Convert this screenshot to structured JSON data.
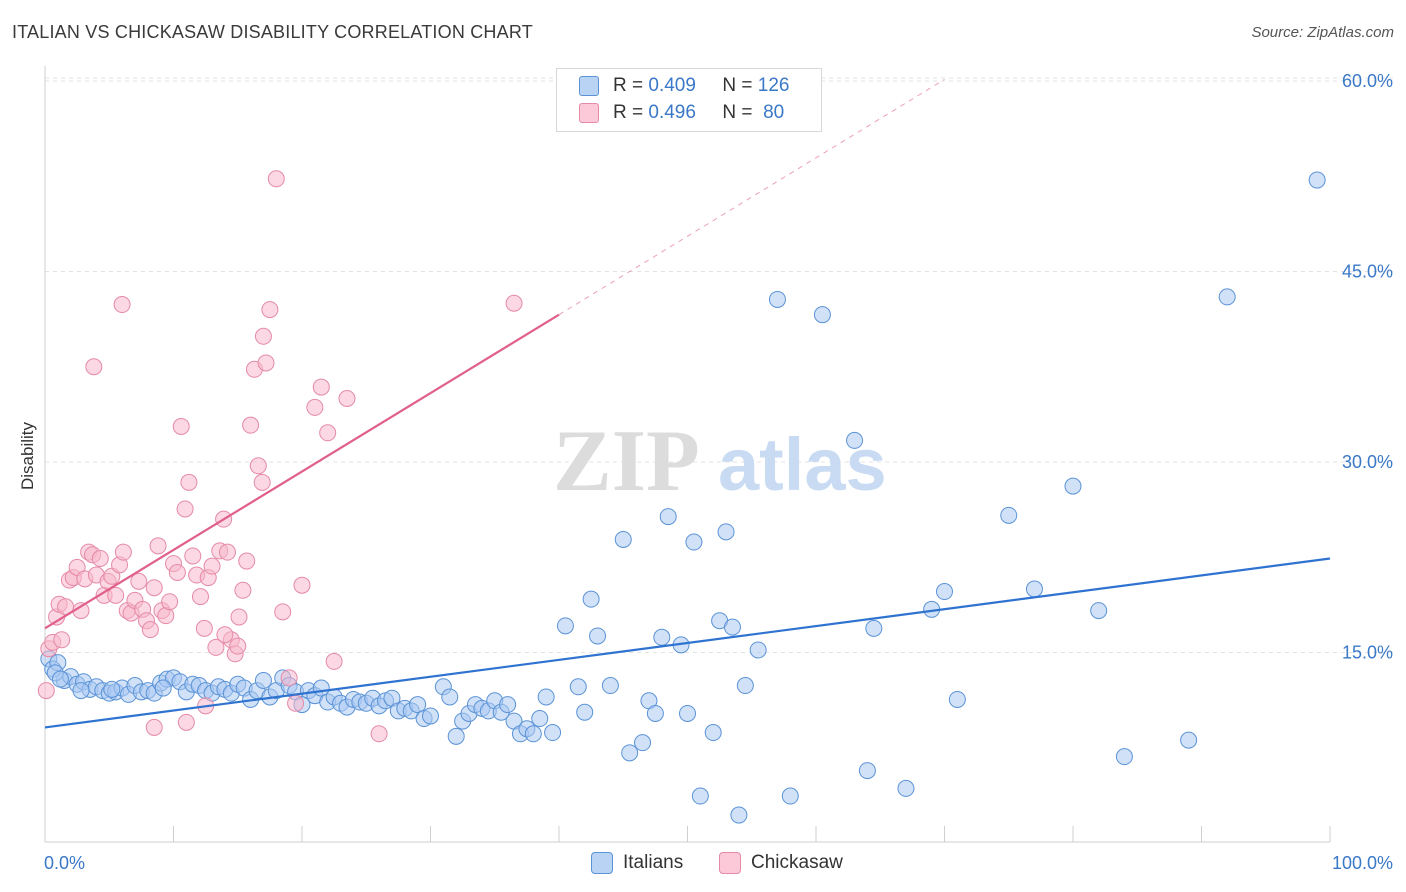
{
  "header": {
    "title": "ITALIAN VS CHICKASAW DISABILITY CORRELATION CHART",
    "source": "Source: ZipAtlas.com"
  },
  "watermark": {
    "zip": "ZIP",
    "atlas": "atlas"
  },
  "colors": {
    "italians_fill": "#a9c9f2",
    "italians_stroke": "#5b93d6",
    "italians_line": "#2f73d0",
    "chickasaw_fill": "#f7b8cc",
    "chickasaw_stroke": "#e58aa7",
    "chickasaw_line": "#e0608a",
    "axis_label": "#3a78c8",
    "grid": "#e3e3e3"
  },
  "legend": {
    "rows": [
      {
        "r_label": "R =",
        "r_value": "0.409",
        "n_label": "N =",
        "n_value": "126"
      },
      {
        "r_label": "R =",
        "r_value": "0.496",
        "n_label": "N =",
        "n_value": "80"
      }
    ],
    "bottom": [
      {
        "label": "Italians"
      },
      {
        "label": "Chickasaw"
      }
    ]
  },
  "chart_data": {
    "type": "scatter",
    "title": "ITALIAN VS CHICKASAW DISABILITY CORRELATION CHART",
    "xlabel": "",
    "ylabel": "Disability",
    "xlim": [
      0,
      100
    ],
    "ylim": [
      0,
      60
    ],
    "x_tick_labels": [
      "0.0%",
      "100.0%"
    ],
    "y_ticks": [
      15,
      30,
      45,
      60
    ],
    "y_tick_labels": [
      "15.0%",
      "30.0%",
      "45.0%",
      "60.0%"
    ],
    "grid": true,
    "legend_position": "top-center",
    "series": [
      {
        "name": "Italians",
        "r": 0.409,
        "n": 126,
        "trend": {
          "x": [
            0,
            100
          ],
          "y": [
            9.1,
            22.4
          ]
        },
        "points": [
          [
            0.3,
            14.5
          ],
          [
            0.6,
            13.7
          ],
          [
            1.0,
            14.2
          ],
          [
            1.5,
            12.8
          ],
          [
            2.0,
            13.1
          ],
          [
            2.5,
            12.5
          ],
          [
            3.0,
            12.7
          ],
          [
            3.5,
            12.1
          ],
          [
            4.0,
            12.3
          ],
          [
            4.5,
            12.0
          ],
          [
            5.0,
            11.8
          ],
          [
            5.5,
            11.9
          ],
          [
            6.0,
            12.2
          ],
          [
            6.5,
            11.7
          ],
          [
            7.0,
            12.4
          ],
          [
            7.5,
            11.9
          ],
          [
            8.0,
            12.0
          ],
          [
            8.5,
            11.8
          ],
          [
            9.0,
            12.6
          ],
          [
            9.5,
            12.9
          ],
          [
            10.0,
            13.0
          ],
          [
            10.5,
            12.7
          ],
          [
            11.0,
            11.9
          ],
          [
            11.5,
            12.5
          ],
          [
            12.0,
            12.4
          ],
          [
            12.5,
            12.0
          ],
          [
            13.0,
            11.8
          ],
          [
            13.5,
            12.3
          ],
          [
            14.0,
            12.1
          ],
          [
            14.5,
            11.8
          ],
          [
            15.0,
            12.5
          ],
          [
            15.5,
            12.2
          ],
          [
            16.0,
            11.3
          ],
          [
            16.5,
            12.0
          ],
          [
            17.0,
            12.8
          ],
          [
            17.5,
            11.5
          ],
          [
            18.0,
            12.0
          ],
          [
            18.5,
            13.0
          ],
          [
            19.0,
            12.4
          ],
          [
            19.5,
            11.9
          ],
          [
            20.0,
            10.9
          ],
          [
            20.5,
            12.0
          ],
          [
            21.0,
            11.6
          ],
          [
            21.5,
            12.2
          ],
          [
            22.0,
            11.1
          ],
          [
            22.5,
            11.5
          ],
          [
            23.0,
            11.0
          ],
          [
            23.5,
            10.7
          ],
          [
            24.0,
            11.3
          ],
          [
            24.5,
            11.1
          ],
          [
            25.0,
            11.0
          ],
          [
            25.5,
            11.4
          ],
          [
            26.0,
            10.8
          ],
          [
            26.5,
            11.2
          ],
          [
            27.0,
            11.4
          ],
          [
            27.5,
            10.4
          ],
          [
            28.0,
            10.6
          ],
          [
            28.5,
            10.4
          ],
          [
            29.0,
            10.9
          ],
          [
            29.5,
            9.8
          ],
          [
            30.0,
            10.0
          ],
          [
            31.0,
            12.3
          ],
          [
            31.5,
            11.5
          ],
          [
            32.0,
            8.4
          ],
          [
            32.5,
            9.6
          ],
          [
            33.0,
            10.2
          ],
          [
            33.5,
            10.9
          ],
          [
            34.0,
            10.6
          ],
          [
            34.5,
            10.4
          ],
          [
            35.0,
            11.2
          ],
          [
            35.5,
            10.3
          ],
          [
            36.0,
            10.9
          ],
          [
            36.5,
            9.6
          ],
          [
            37.0,
            8.6
          ],
          [
            37.5,
            9.0
          ],
          [
            38.0,
            8.6
          ],
          [
            38.5,
            9.8
          ],
          [
            39.0,
            11.5
          ],
          [
            39.5,
            8.7
          ],
          [
            40.5,
            17.1
          ],
          [
            41.5,
            12.3
          ],
          [
            42.0,
            10.3
          ],
          [
            42.5,
            19.2
          ],
          [
            43.0,
            16.3
          ],
          [
            44.0,
            12.4
          ],
          [
            45.0,
            23.9
          ],
          [
            45.5,
            7.1
          ],
          [
            46.5,
            7.9
          ],
          [
            47.0,
            11.2
          ],
          [
            47.5,
            10.2
          ],
          [
            48.0,
            16.2
          ],
          [
            48.5,
            25.7
          ],
          [
            49.5,
            15.6
          ],
          [
            50.0,
            10.2
          ],
          [
            50.5,
            23.7
          ],
          [
            51.0,
            3.7
          ],
          [
            52.0,
            8.7
          ],
          [
            52.5,
            17.5
          ],
          [
            53.0,
            24.5
          ],
          [
            53.5,
            17.0
          ],
          [
            54.0,
            2.2
          ],
          [
            54.5,
            12.4
          ],
          [
            55.5,
            15.2
          ],
          [
            57.0,
            42.8
          ],
          [
            58.0,
            3.7
          ],
          [
            60.5,
            41.6
          ],
          [
            63.0,
            31.7
          ],
          [
            64.0,
            5.7
          ],
          [
            64.5,
            16.9
          ],
          [
            67.0,
            4.3
          ],
          [
            69.0,
            18.4
          ],
          [
            70.0,
            19.8
          ],
          [
            71.0,
            11.3
          ],
          [
            75.0,
            25.8
          ],
          [
            77.0,
            20.0
          ],
          [
            80.0,
            28.1
          ],
          [
            82.0,
            18.3
          ],
          [
            84.0,
            6.8
          ],
          [
            89.0,
            8.1
          ],
          [
            92.0,
            43.0
          ],
          [
            99.0,
            52.2
          ],
          [
            0.8,
            13.4
          ],
          [
            1.2,
            12.9
          ],
          [
            2.8,
            12.0
          ],
          [
            5.2,
            12.1
          ],
          [
            9.2,
            12.2
          ]
        ]
      },
      {
        "name": "Chickasaw",
        "r": 0.496,
        "n": 80,
        "trend": {
          "x": [
            0,
            40
          ],
          "y": [
            16.9,
            41.6
          ]
        },
        "points": [
          [
            0.1,
            12.0
          ],
          [
            0.3,
            15.3
          ],
          [
            0.6,
            15.8
          ],
          [
            0.9,
            17.8
          ],
          [
            1.1,
            18.8
          ],
          [
            1.3,
            16.0
          ],
          [
            1.6,
            18.6
          ],
          [
            1.9,
            20.7
          ],
          [
            2.2,
            20.9
          ],
          [
            2.5,
            21.7
          ],
          [
            2.8,
            18.3
          ],
          [
            3.1,
            20.8
          ],
          [
            3.4,
            22.9
          ],
          [
            3.7,
            22.7
          ],
          [
            4.0,
            21.1
          ],
          [
            4.3,
            22.4
          ],
          [
            4.6,
            19.5
          ],
          [
            4.9,
            20.6
          ],
          [
            5.2,
            21.0
          ],
          [
            5.5,
            19.5
          ],
          [
            5.8,
            21.9
          ],
          [
            6.1,
            22.9
          ],
          [
            6.4,
            18.3
          ],
          [
            6.7,
            18.1
          ],
          [
            7.0,
            19.1
          ],
          [
            7.3,
            20.6
          ],
          [
            7.6,
            18.4
          ],
          [
            7.9,
            17.5
          ],
          [
            8.2,
            16.8
          ],
          [
            8.5,
            20.1
          ],
          [
            8.8,
            23.4
          ],
          [
            9.1,
            18.3
          ],
          [
            9.4,
            17.9
          ],
          [
            9.7,
            19.0
          ],
          [
            10.0,
            22.0
          ],
          [
            10.3,
            21.3
          ],
          [
            10.6,
            32.8
          ],
          [
            10.9,
            26.3
          ],
          [
            11.2,
            28.4
          ],
          [
            11.5,
            22.6
          ],
          [
            11.8,
            21.1
          ],
          [
            12.1,
            19.4
          ],
          [
            12.4,
            16.9
          ],
          [
            12.7,
            20.9
          ],
          [
            13.0,
            21.8
          ],
          [
            13.3,
            15.4
          ],
          [
            13.6,
            23.0
          ],
          [
            13.9,
            25.5
          ],
          [
            14.2,
            22.9
          ],
          [
            14.5,
            16.0
          ],
          [
            14.8,
            14.9
          ],
          [
            15.1,
            17.8
          ],
          [
            15.4,
            19.9
          ],
          [
            15.7,
            22.2
          ],
          [
            16.0,
            32.9
          ],
          [
            16.3,
            37.3
          ],
          [
            16.6,
            29.7
          ],
          [
            16.9,
            28.4
          ],
          [
            17.2,
            37.8
          ],
          [
            17.5,
            42.0
          ],
          [
            18.0,
            52.3
          ],
          [
            18.5,
            18.2
          ],
          [
            19.0,
            13.0
          ],
          [
            19.5,
            11.0
          ],
          [
            20.0,
            20.3
          ],
          [
            21.0,
            34.3
          ],
          [
            21.5,
            35.9
          ],
          [
            22.0,
            32.3
          ],
          [
            22.5,
            14.3
          ],
          [
            23.5,
            35.0
          ],
          [
            26.0,
            8.6
          ],
          [
            36.5,
            42.5
          ],
          [
            3.8,
            37.5
          ],
          [
            6.0,
            42.4
          ],
          [
            8.5,
            9.1
          ],
          [
            11.0,
            9.5
          ],
          [
            12.5,
            10.8
          ],
          [
            14.0,
            16.4
          ],
          [
            15.0,
            15.5
          ],
          [
            17.0,
            39.9
          ]
        ]
      }
    ]
  }
}
